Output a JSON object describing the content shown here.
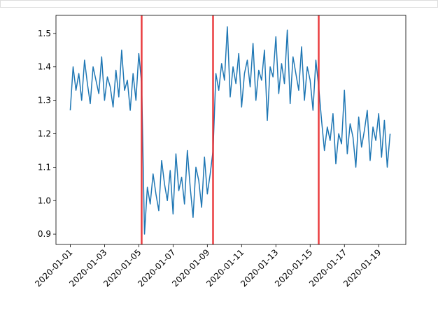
{
  "chart_data": {
    "type": "line",
    "x": [
      "2020-01-01T00:00",
      "2020-01-01T04:00",
      "2020-01-01T08:00",
      "2020-01-01T12:00",
      "2020-01-01T16:00",
      "2020-01-01T20:00",
      "2020-01-02T00:00",
      "2020-01-02T04:00",
      "2020-01-02T08:00",
      "2020-01-02T12:00",
      "2020-01-02T16:00",
      "2020-01-02T20:00",
      "2020-01-03T00:00",
      "2020-01-03T04:00",
      "2020-01-03T08:00",
      "2020-01-03T12:00",
      "2020-01-03T16:00",
      "2020-01-03T20:00",
      "2020-01-04T00:00",
      "2020-01-04T04:00",
      "2020-01-04T08:00",
      "2020-01-04T12:00",
      "2020-01-04T16:00",
      "2020-01-04T20:00",
      "2020-01-05T00:00",
      "2020-01-05T04:00",
      "2020-01-05T08:00",
      "2020-01-05T12:00",
      "2020-01-05T16:00",
      "2020-01-05T20:00",
      "2020-01-06T00:00",
      "2020-01-06T04:00",
      "2020-01-06T08:00",
      "2020-01-06T12:00",
      "2020-01-06T16:00",
      "2020-01-06T20:00",
      "2020-01-07T00:00",
      "2020-01-07T04:00",
      "2020-01-07T08:00",
      "2020-01-07T12:00",
      "2020-01-07T16:00",
      "2020-01-07T20:00",
      "2020-01-08T00:00",
      "2020-01-08T04:00",
      "2020-01-08T08:00",
      "2020-01-08T12:00",
      "2020-01-08T16:00",
      "2020-01-08T20:00",
      "2020-01-09T00:00",
      "2020-01-09T04:00",
      "2020-01-09T08:00",
      "2020-01-09T12:00",
      "2020-01-09T16:00",
      "2020-01-09T20:00",
      "2020-01-10T00:00",
      "2020-01-10T04:00",
      "2020-01-10T08:00",
      "2020-01-10T12:00",
      "2020-01-10T16:00",
      "2020-01-10T20:00",
      "2020-01-11T00:00",
      "2020-01-11T04:00",
      "2020-01-11T08:00",
      "2020-01-11T12:00",
      "2020-01-11T16:00",
      "2020-01-11T20:00",
      "2020-01-12T00:00",
      "2020-01-12T04:00",
      "2020-01-12T08:00",
      "2020-01-12T12:00",
      "2020-01-12T16:00",
      "2020-01-12T20:00",
      "2020-01-13T00:00",
      "2020-01-13T04:00",
      "2020-01-13T08:00",
      "2020-01-13T12:00",
      "2020-01-13T16:00",
      "2020-01-13T20:00",
      "2020-01-14T00:00",
      "2020-01-14T04:00",
      "2020-01-14T08:00",
      "2020-01-14T12:00",
      "2020-01-14T16:00",
      "2020-01-14T20:00",
      "2020-01-15T00:00",
      "2020-01-15T04:00",
      "2020-01-15T08:00",
      "2020-01-15T12:00",
      "2020-01-15T16:00",
      "2020-01-15T20:00",
      "2020-01-16T00:00",
      "2020-01-16T04:00",
      "2020-01-16T08:00",
      "2020-01-16T12:00",
      "2020-01-16T16:00",
      "2020-01-16T20:00",
      "2020-01-17T00:00",
      "2020-01-17T04:00",
      "2020-01-17T08:00",
      "2020-01-17T12:00",
      "2020-01-17T16:00",
      "2020-01-17T20:00",
      "2020-01-18T00:00",
      "2020-01-18T04:00",
      "2020-01-18T08:00",
      "2020-01-18T12:00",
      "2020-01-18T16:00",
      "2020-01-18T20:00",
      "2020-01-19T00:00",
      "2020-01-19T04:00",
      "2020-01-19T08:00",
      "2020-01-19T12:00",
      "2020-01-19T16:00"
    ],
    "series": [
      {
        "color": "#1f77b4",
        "values": [
          1.27,
          1.4,
          1.33,
          1.38,
          1.3,
          1.42,
          1.35,
          1.29,
          1.4,
          1.36,
          1.32,
          1.43,
          1.3,
          1.37,
          1.34,
          1.28,
          1.39,
          1.31,
          1.45,
          1.33,
          1.36,
          1.27,
          1.38,
          1.3,
          1.44,
          1.35,
          0.9,
          1.04,
          0.99,
          1.08,
          1.02,
          0.97,
          1.12,
          1.05,
          1.0,
          1.09,
          0.96,
          1.14,
          1.03,
          1.07,
          0.99,
          1.15,
          1.04,
          0.95,
          1.1,
          1.06,
          0.98,
          1.13,
          1.02,
          1.08,
          1.15,
          1.38,
          1.33,
          1.41,
          1.36,
          1.52,
          1.31,
          1.4,
          1.35,
          1.44,
          1.28,
          1.38,
          1.42,
          1.34,
          1.47,
          1.3,
          1.39,
          1.36,
          1.45,
          1.24,
          1.4,
          1.37,
          1.49,
          1.32,
          1.41,
          1.35,
          1.51,
          1.29,
          1.43,
          1.38,
          1.33,
          1.46,
          1.3,
          1.4,
          1.36,
          1.27,
          1.42,
          1.34,
          1.24,
          1.15,
          1.22,
          1.18,
          1.26,
          1.11,
          1.2,
          1.17,
          1.33,
          1.14,
          1.23,
          1.19,
          1.1,
          1.25,
          1.16,
          1.21,
          1.27,
          1.12,
          1.22,
          1.18,
          1.26,
          1.13,
          1.24,
          1.1,
          1.2
        ]
      }
    ],
    "vlines": {
      "x": [
        "2020-01-05T04:00",
        "2020-01-09T08:00",
        "2020-01-15T12:00"
      ],
      "color": "#e8282b"
    },
    "xlim": [
      "2019-12-31T04:00",
      "2020-01-20T14:00"
    ],
    "xticks": [
      "2020-01-01",
      "2020-01-03",
      "2020-01-05",
      "2020-01-07",
      "2020-01-09",
      "2020-01-11",
      "2020-01-13",
      "2020-01-15",
      "2020-01-17",
      "2020-01-19"
    ],
    "ylim": [
      0.869,
      1.554
    ],
    "yticks": [
      0.9,
      {
        "value": 1,
        "label": "1.0"
      },
      1.1,
      1.2,
      1.3,
      1.4,
      1.5
    ],
    "grid": false
  }
}
